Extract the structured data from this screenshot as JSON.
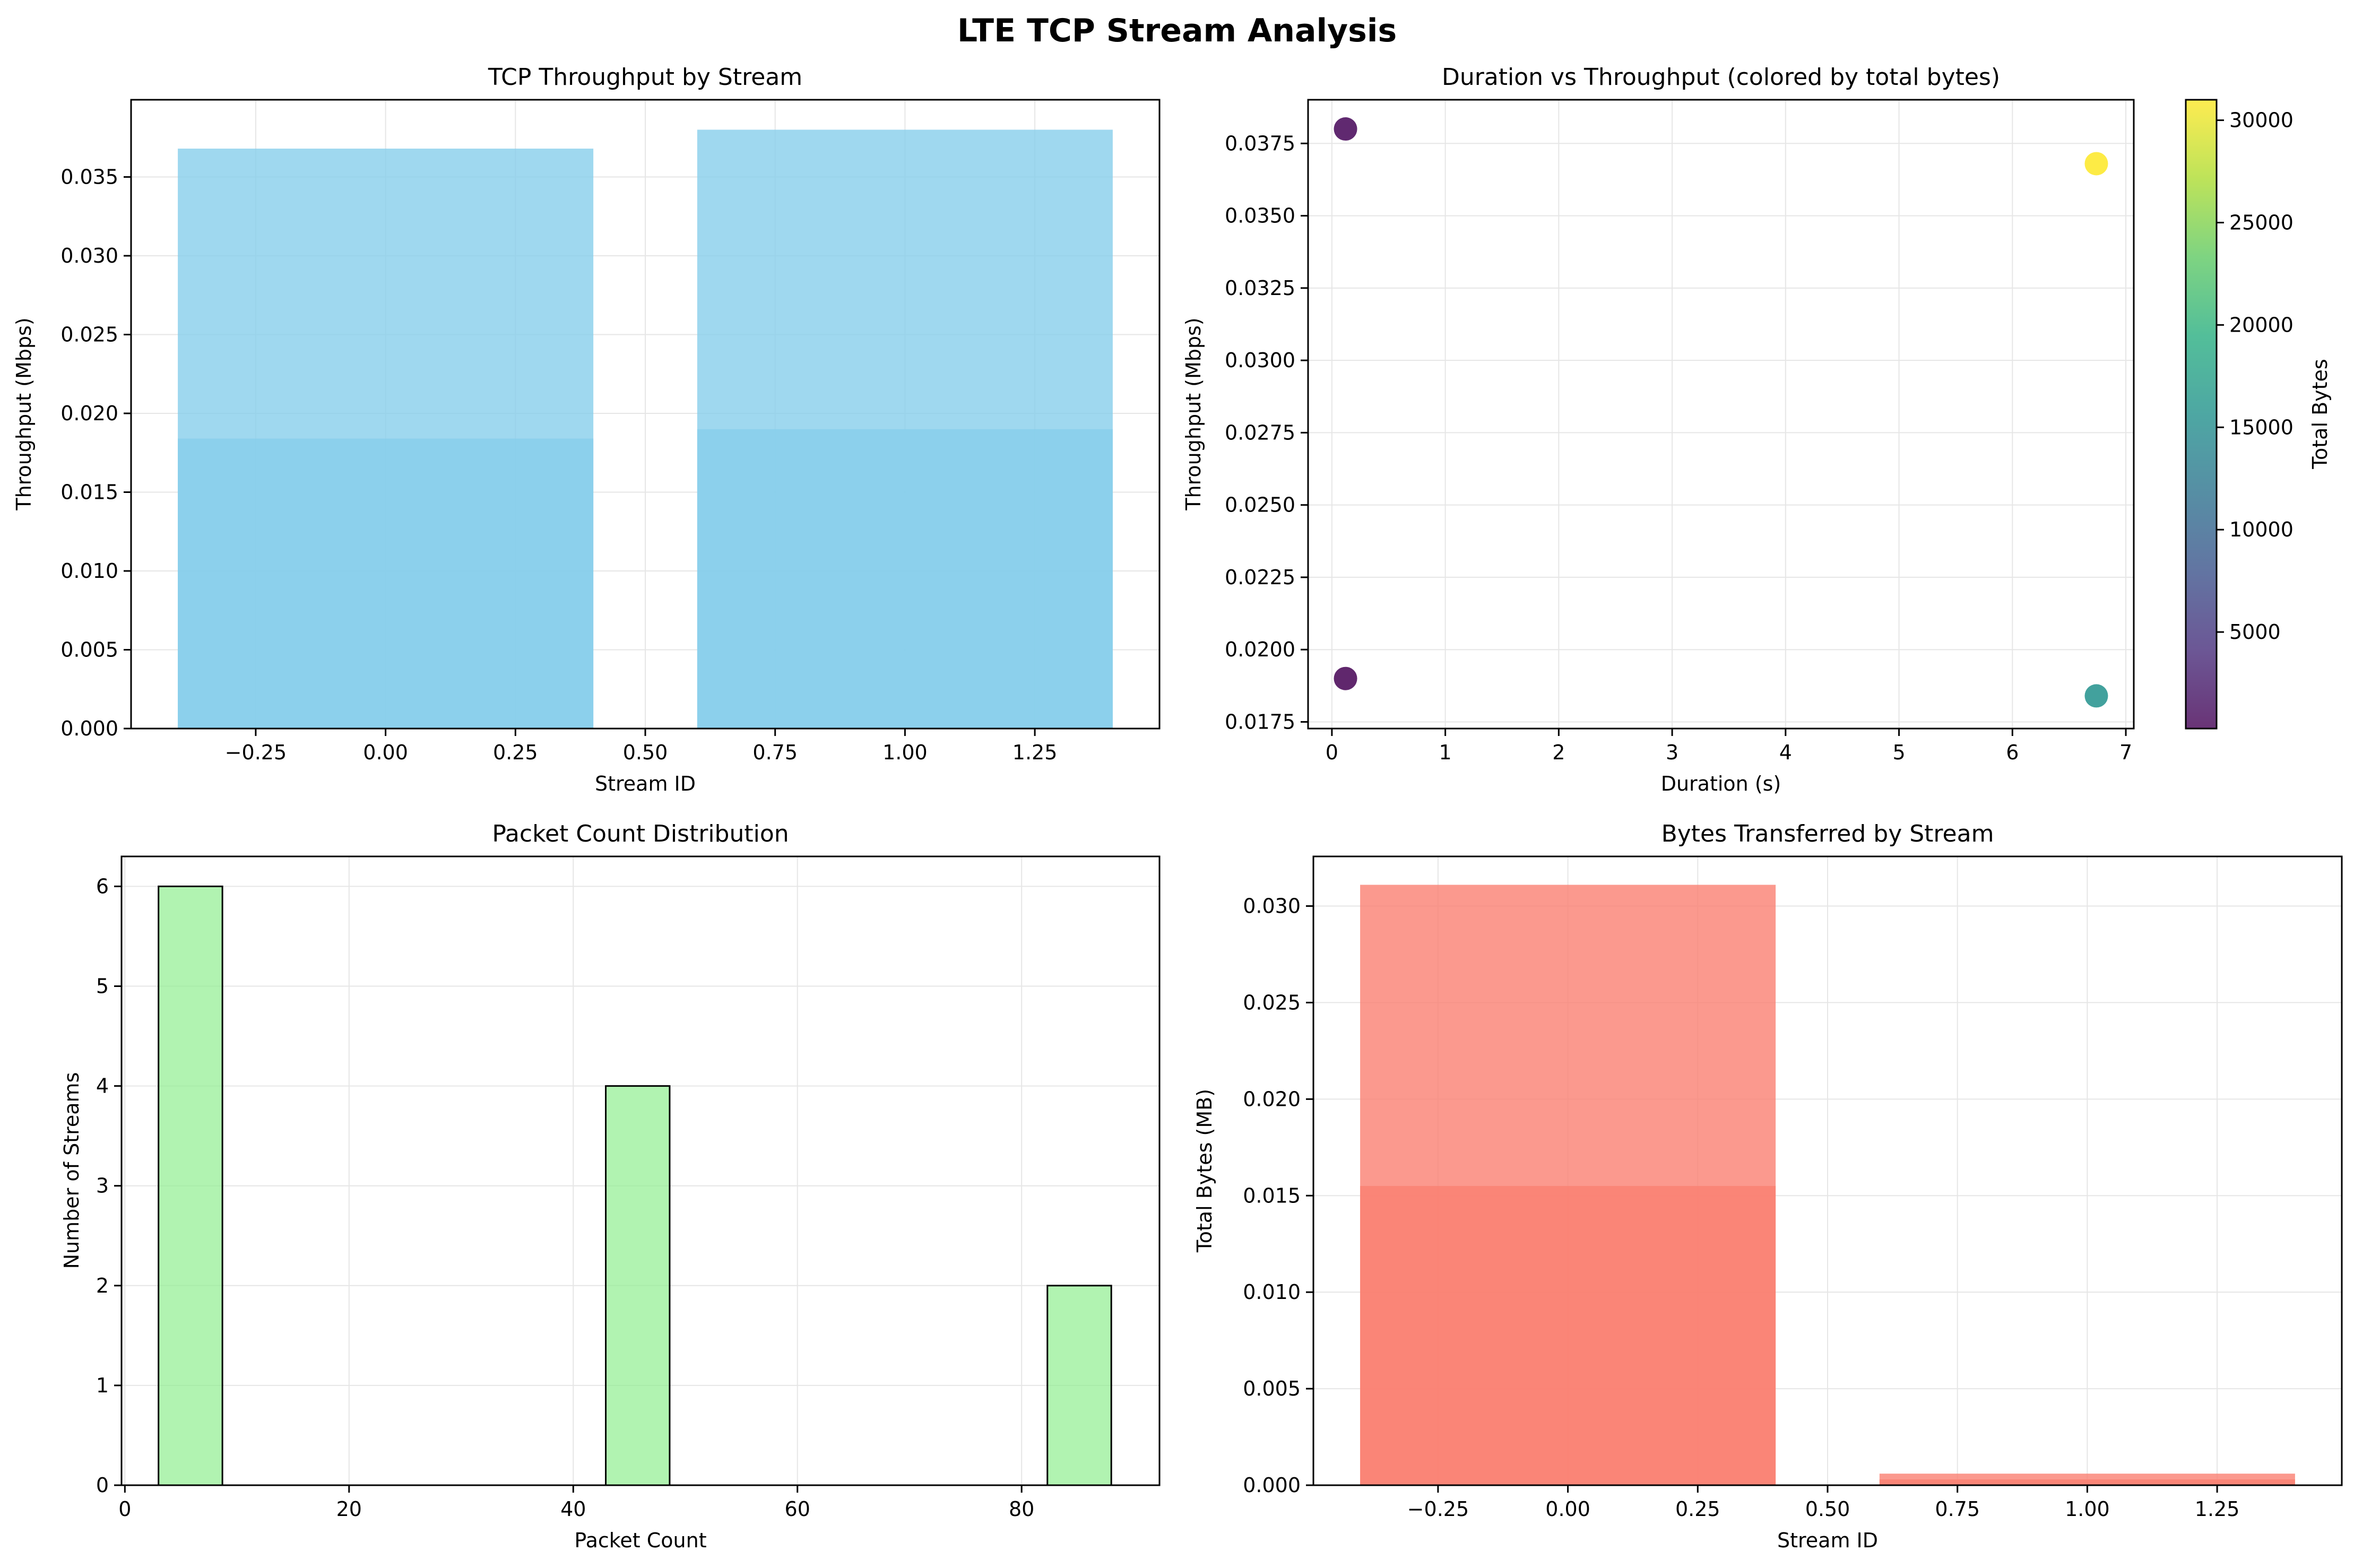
{
  "figure": {
    "title": "LTE TCP Stream Analysis"
  },
  "colors": {
    "throughput_bar": "#87CEEB",
    "bytes_bar": "#FA8072",
    "hist_bar": "#90EE90",
    "hist_edge": "#000000",
    "grid": "#e6e6e6"
  },
  "chart_data": [
    {
      "id": "throughput",
      "type": "bar",
      "title": "TCP Throughput by Stream",
      "xlabel": "Stream ID",
      "ylabel": "Throughput (Mbps)",
      "xlim": [
        -0.49,
        1.49
      ],
      "ylim": [
        0,
        0.0399
      ],
      "xticks": [
        -0.25,
        0.0,
        0.25,
        0.5,
        0.75,
        1.0,
        1.25
      ],
      "xtick_labels": [
        "−0.25",
        "0.00",
        "0.25",
        "0.50",
        "0.75",
        "1.00",
        "1.25"
      ],
      "yticks": [
        0,
        0.005,
        0.01,
        0.015,
        0.02,
        0.025,
        0.03,
        0.035
      ],
      "ytick_labels": [
        "0.000",
        "0.005",
        "0.010",
        "0.015",
        "0.020",
        "0.025",
        "0.030",
        "0.035"
      ],
      "bar_width": 0.8,
      "bars": [
        {
          "x": 0,
          "value": 0.0184
        },
        {
          "x": 0,
          "value": 0.0368
        },
        {
          "x": 1,
          "value": 0.019
        },
        {
          "x": 1,
          "value": 0.038
        }
      ],
      "grid": true
    },
    {
      "id": "scatter",
      "type": "scatter",
      "title": "Duration vs Throughput (colored by total bytes)",
      "xlabel": "Duration (s)",
      "ylabel": "Throughput (Mbps)",
      "xlim": [
        -0.21,
        7.07
      ],
      "ylim": [
        0.01727,
        0.03901
      ],
      "xticks": [
        0,
        1,
        2,
        3,
        4,
        5,
        6,
        7
      ],
      "xtick_labels": [
        "0",
        "1",
        "2",
        "3",
        "4",
        "5",
        "6",
        "7"
      ],
      "yticks": [
        0.0175,
        0.02,
        0.0225,
        0.025,
        0.0275,
        0.03,
        0.0325,
        0.035,
        0.0375
      ],
      "ytick_labels": [
        "0.0175",
        "0.0200",
        "0.0225",
        "0.0250",
        "0.0275",
        "0.0300",
        "0.0325",
        "0.0350",
        "0.0375"
      ],
      "points": [
        {
          "x": 0.12,
          "y": 0.038,
          "c": 570
        },
        {
          "x": 0.12,
          "y": 0.019,
          "c": 285
        },
        {
          "x": 6.74,
          "y": 0.0368,
          "c": 31000
        },
        {
          "x": 6.74,
          "y": 0.0184,
          "c": 15500
        }
      ],
      "colorbar": {
        "label": "Total Bytes",
        "range": [
          285,
          31000
        ],
        "ticks": [
          5000,
          10000,
          15000,
          20000,
          25000,
          30000
        ],
        "tick_labels": [
          "5000",
          "10000",
          "15000",
          "20000",
          "25000",
          "30000"
        ],
        "colormap": "viridis"
      },
      "grid": true
    },
    {
      "id": "histogram",
      "type": "bar",
      "title": "Packet Count Distribution",
      "xlabel": "Packet Count",
      "ylabel": "Number of Streams",
      "xlim": [
        -0.3,
        92.3
      ],
      "ylim": [
        0,
        6.3
      ],
      "xticks": [
        0,
        20,
        40,
        60,
        80
      ],
      "xtick_labels": [
        "0",
        "20",
        "40",
        "60",
        "80"
      ],
      "yticks": [
        0,
        1,
        2,
        3,
        4,
        5,
        6
      ],
      "ytick_labels": [
        "0",
        "1",
        "2",
        "3",
        "4",
        "5",
        "6"
      ],
      "bins": [
        {
          "x0": 3.0,
          "x1": 8.7,
          "count": 6
        },
        {
          "x0": 42.9,
          "x1": 48.6,
          "count": 4
        },
        {
          "x0": 82.3,
          "x1": 88.0,
          "count": 2
        }
      ],
      "grid": true
    },
    {
      "id": "bytes",
      "type": "bar",
      "title": "Bytes Transferred by Stream",
      "xlabel": "Stream ID",
      "ylabel": "Total Bytes (MB)",
      "xlim": [
        -0.49,
        1.49
      ],
      "ylim": [
        0,
        0.03257
      ],
      "xticks": [
        -0.25,
        0.0,
        0.25,
        0.5,
        0.75,
        1.0,
        1.25
      ],
      "xtick_labels": [
        "−0.25",
        "0.00",
        "0.25",
        "0.50",
        "0.75",
        "1.00",
        "1.25"
      ],
      "yticks": [
        0,
        0.005,
        0.01,
        0.015,
        0.02,
        0.025,
        0.03
      ],
      "ytick_labels": [
        "0.000",
        "0.005",
        "0.010",
        "0.015",
        "0.020",
        "0.025",
        "0.030"
      ],
      "bar_width": 0.8,
      "bars": [
        {
          "x": 0,
          "value": 0.0155
        },
        {
          "x": 0,
          "value": 0.0311
        },
        {
          "x": 1,
          "value": 0.0003
        },
        {
          "x": 1,
          "value": 0.0006
        }
      ],
      "grid": true
    }
  ]
}
